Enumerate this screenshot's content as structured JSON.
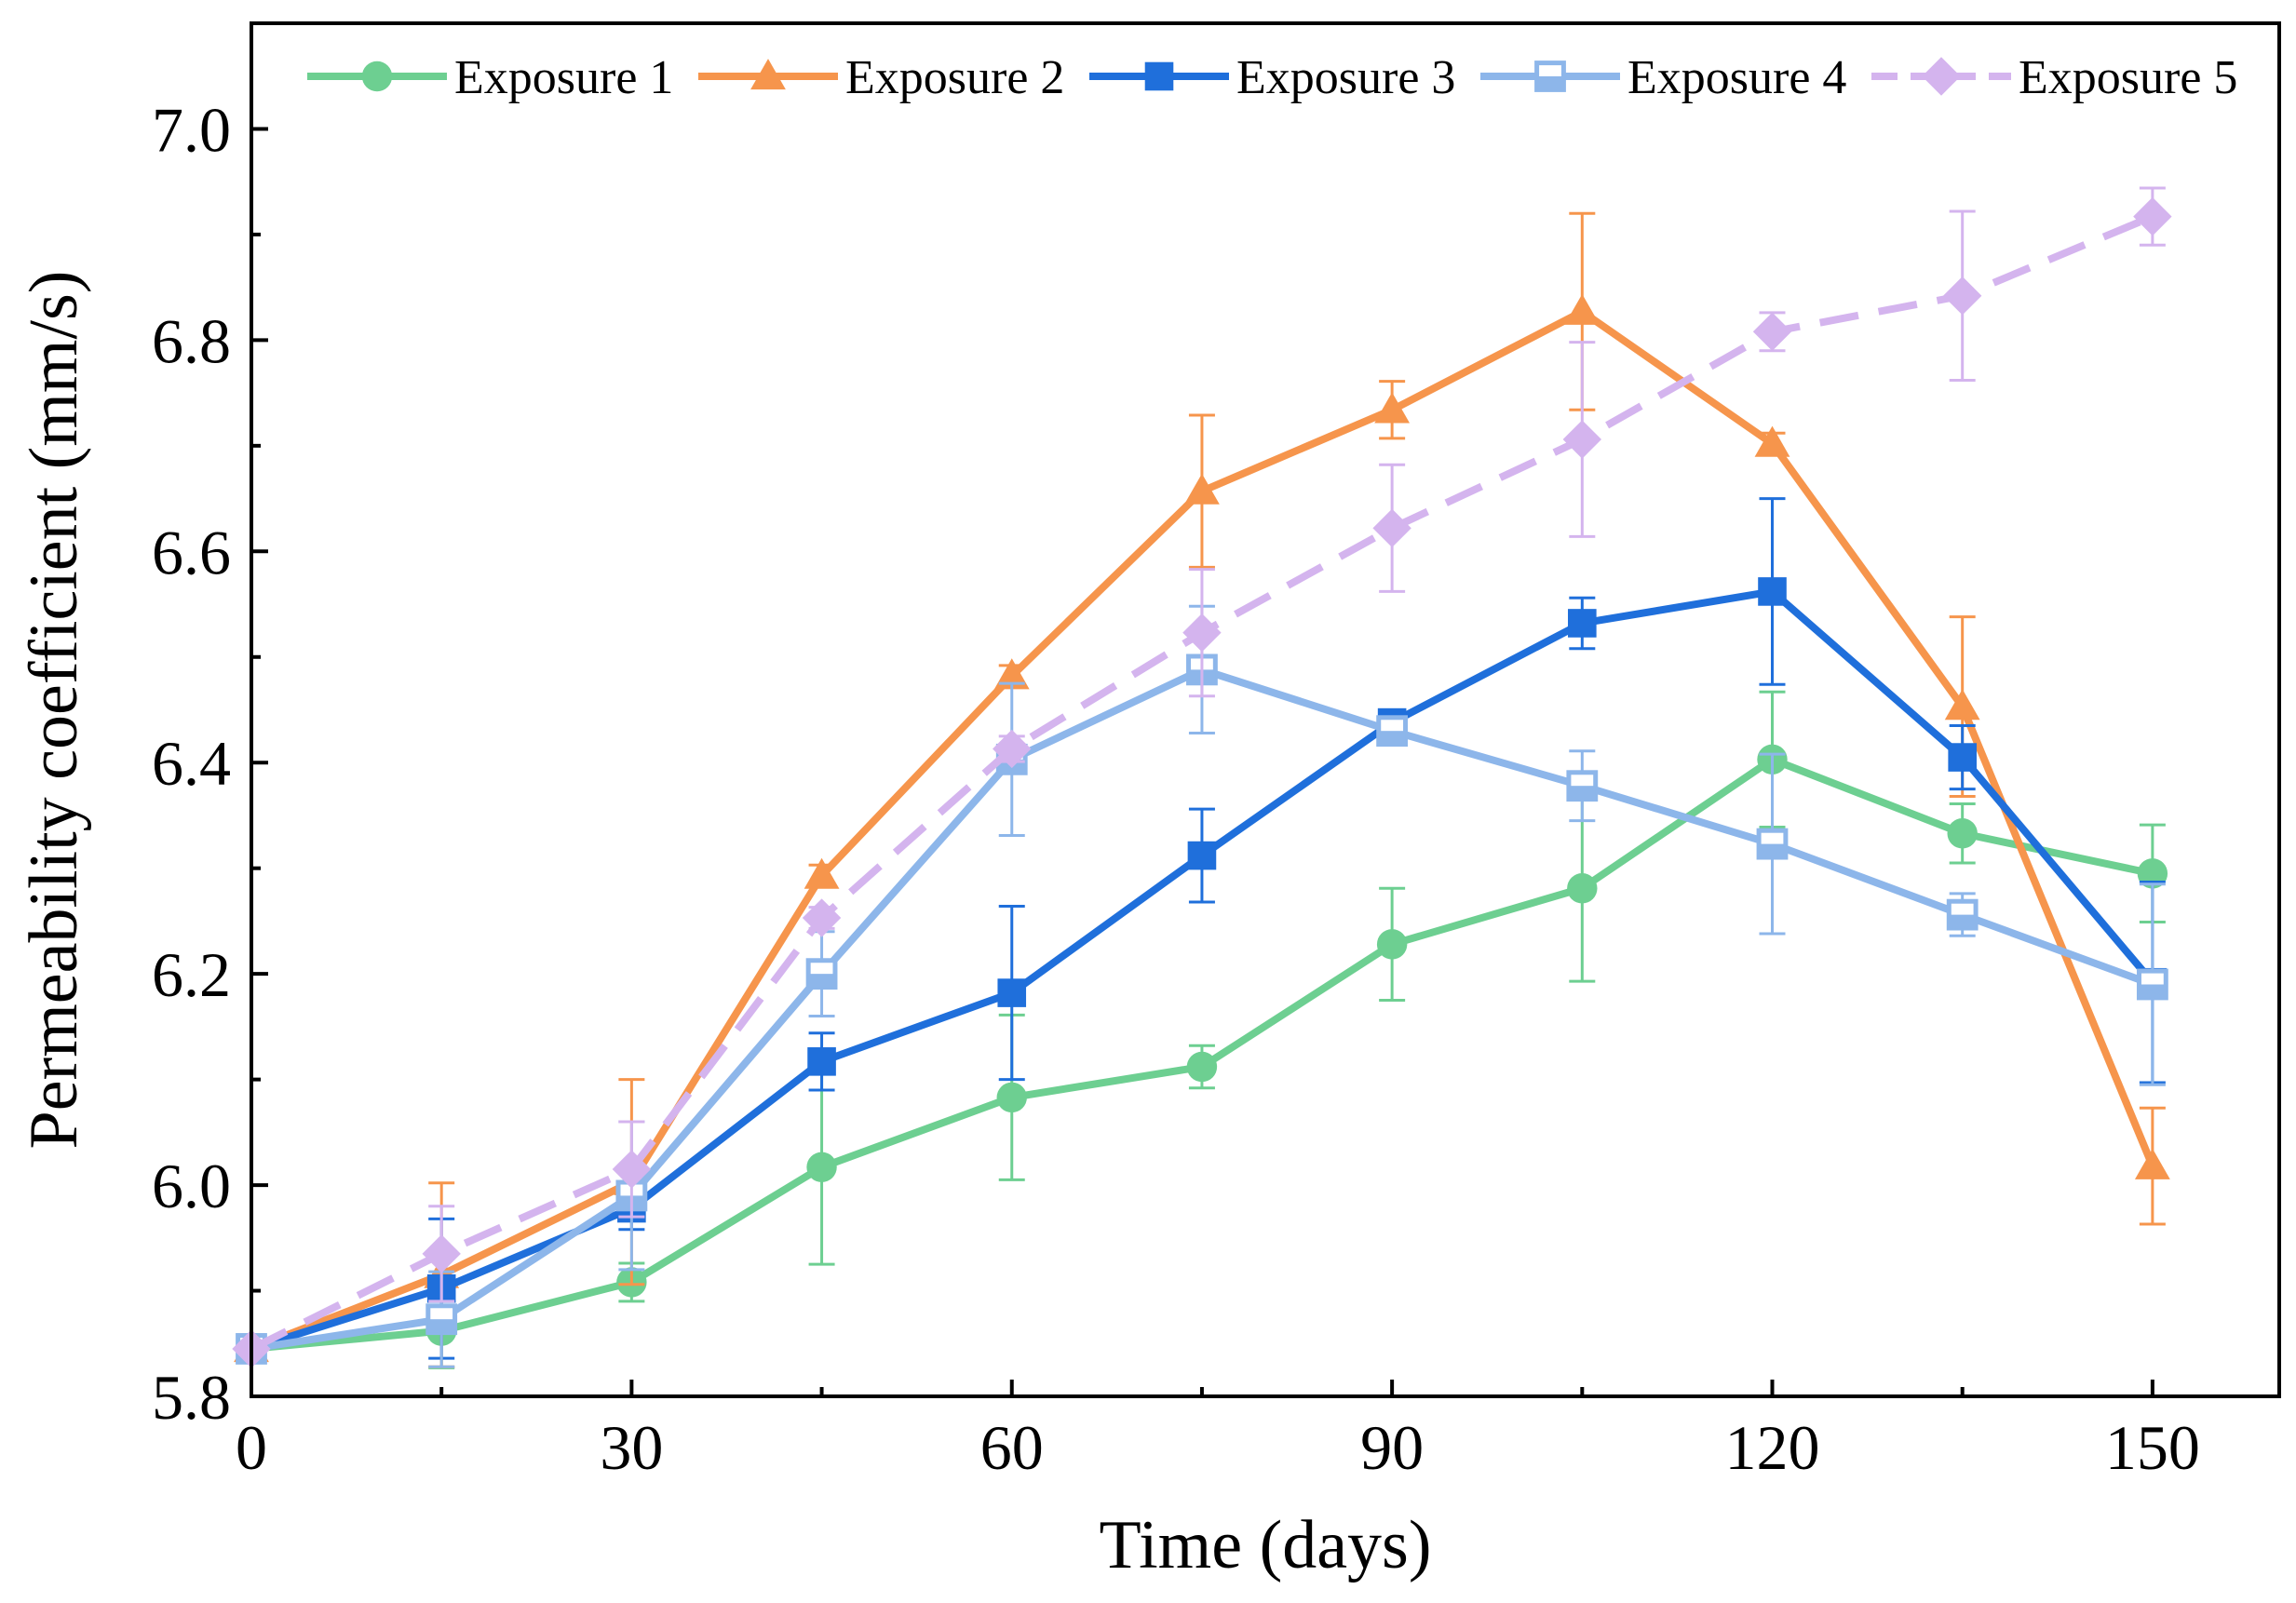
{
  "chart_data": {
    "type": "line",
    "xlabel": "Time (days)",
    "ylabel": "Permeability coefficient (mm/s)",
    "xlim": [
      0,
      160
    ],
    "ylim": [
      5.8,
      7.1
    ],
    "xticks": [
      0,
      30,
      60,
      90,
      120,
      150
    ],
    "xtick_labels": [
      "0",
      "30",
      "60",
      "90",
      "120",
      "150"
    ],
    "yticks": [
      5.8,
      6.0,
      6.2,
      6.4,
      6.6,
      6.8,
      7.0
    ],
    "ytick_labels": [
      "5.8",
      "6.0",
      "6.2",
      "6.4",
      "6.6",
      "6.8",
      "7.0"
    ],
    "grid": false,
    "legend_position": "top",
    "x": [
      0,
      15,
      30,
      45,
      60,
      75,
      90,
      105,
      120,
      135,
      150
    ],
    "series": [
      {
        "name": "Exposure 1",
        "color": "#6dcf91",
        "marker": "circle",
        "line_style": "solid",
        "values": [
          5.845,
          5.862,
          5.908,
          6.017,
          6.083,
          6.112,
          6.228,
          6.281,
          6.403,
          6.333,
          6.295
        ],
        "errors": [
          0.005,
          0.035,
          0.018,
          0.092,
          0.078,
          0.02,
          0.053,
          0.088,
          0.064,
          0.028,
          0.046
        ]
      },
      {
        "name": "Exposure 2",
        "color": "#f6954c",
        "marker": "triangle",
        "line_style": "solid",
        "values": [
          5.845,
          5.915,
          6.003,
          6.293,
          6.482,
          6.657,
          6.734,
          6.827,
          6.702,
          6.453,
          6.018
        ],
        "errors": [
          0.005,
          0.087,
          0.097,
          0.01,
          0.01,
          0.072,
          0.027,
          0.093,
          0.01,
          0.085,
          0.055
        ]
      },
      {
        "name": "Exposure 3",
        "color": "#1f6fdb",
        "marker": "square",
        "line_style": "solid",
        "values": [
          5.845,
          5.902,
          5.978,
          6.117,
          6.182,
          6.312,
          6.438,
          6.532,
          6.562,
          6.405,
          6.192
        ],
        "errors": [
          0.005,
          0.066,
          0.02,
          0.027,
          0.082,
          0.044,
          0.01,
          0.024,
          0.088,
          0.03,
          0.095
        ]
      },
      {
        "name": "Exposure 4",
        "color": "#8db6ea",
        "marker": "square-open",
        "line_style": "solid",
        "values": [
          5.845,
          5.873,
          5.99,
          6.2,
          6.403,
          6.488,
          6.43,
          6.378,
          6.323,
          6.256,
          6.19
        ],
        "errors": [
          0.005,
          0.045,
          0.07,
          0.04,
          0.072,
          0.06,
          0.01,
          0.033,
          0.085,
          0.02,
          0.095
        ]
      },
      {
        "name": "Exposure 5",
        "color": "#d4b4ee",
        "marker": "diamond",
        "line_style": "dashed",
        "values": [
          5.845,
          5.935,
          6.015,
          6.253,
          6.413,
          6.523,
          6.622,
          6.706,
          6.808,
          6.842,
          6.917
        ],
        "errors": [
          0.005,
          0.045,
          0.045,
          0.01,
          0.012,
          0.06,
          0.06,
          0.092,
          0.018,
          0.08,
          0.027
        ]
      }
    ]
  }
}
